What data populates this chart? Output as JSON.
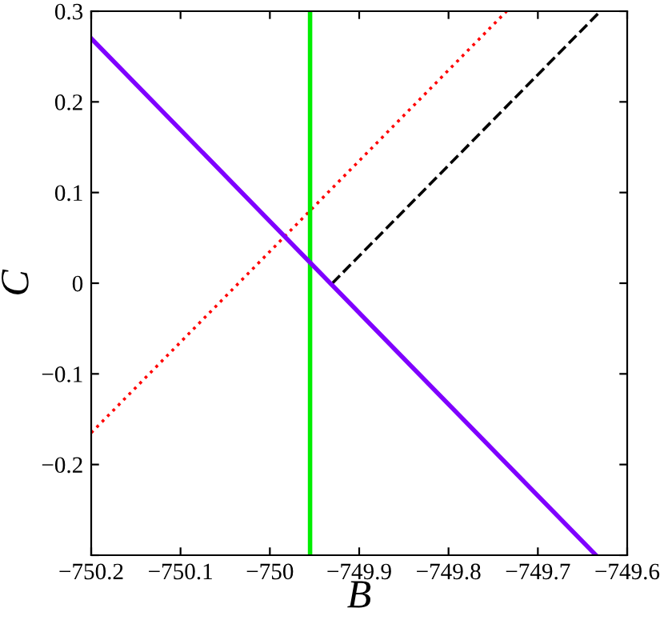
{
  "chart_data": {
    "type": "line",
    "xlabel": "B",
    "ylabel": "C",
    "xlim": [
      -750.2,
      -749.6
    ],
    "ylim": [
      -0.3,
      0.3
    ],
    "xticks": [
      {
        "value": -750.2,
        "label": "−750.2"
      },
      {
        "value": -750.1,
        "label": "−750.1"
      },
      {
        "value": -750.0,
        "label": "−750"
      },
      {
        "value": -749.9,
        "label": "−749.9"
      },
      {
        "value": -749.8,
        "label": "−749.8"
      },
      {
        "value": -749.7,
        "label": "−749.7"
      },
      {
        "value": -749.6,
        "label": "−749.6"
      }
    ],
    "yticks": [
      {
        "value": -0.3,
        "label": null
      },
      {
        "value": -0.2,
        "label": "−0.2"
      },
      {
        "value": -0.1,
        "label": "−0.1"
      },
      0,
      0.1,
      0.2,
      0.3
    ],
    "grid": false,
    "legend": false,
    "marker": "none",
    "series": [
      {
        "color": "#ff0000",
        "line_style": "dotted",
        "x": [
          -750.2,
          -749.735
        ],
        "values": [
          -0.165,
          0.3
        ]
      },
      {
        "color": "#000000",
        "line_style": "dashed",
        "x": [
          -749.93,
          -749.63
        ],
        "values": [
          0.0,
          0.3
        ]
      },
      {
        "color": "#00ee00",
        "line_style": "solid",
        "x": [
          -749.955,
          -749.955
        ],
        "values": [
          -0.3,
          0.3
        ]
      },
      {
        "color": "#7f00ff",
        "line_style": "solid",
        "x": [
          -750.2,
          -749.635
        ],
        "values": [
          0.27,
          -0.3
        ]
      }
    ]
  }
}
